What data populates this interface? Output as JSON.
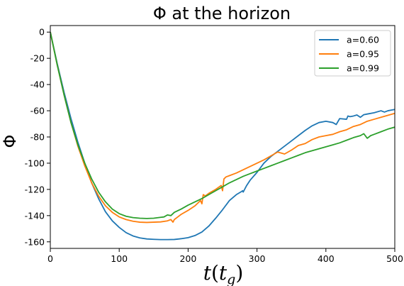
{
  "chart_data": {
    "type": "line",
    "title": "Φ at the horizon",
    "xlabel_main": "t",
    "xlabel_paren_open": "(",
    "xlabel_sub_base": "t",
    "xlabel_sub": "g",
    "xlabel_paren_close": ")",
    "ylabel": "Φ",
    "xlim": [
      0,
      500
    ],
    "ylim": [
      -165,
      5
    ],
    "xticks": [
      0,
      100,
      200,
      300,
      400,
      500
    ],
    "yticks": [
      0,
      -20,
      -40,
      -60,
      -80,
      -100,
      -120,
      -140,
      -160
    ],
    "grid": false,
    "legend_position": "top-right",
    "colors": {
      "a060": "#1f77b4",
      "a095": "#ff7f0e",
      "a099": "#2ca02c"
    },
    "series": [
      {
        "name": "a=0.60",
        "color": "#1f77b4",
        "x": [
          0,
          10,
          20,
          30,
          40,
          50,
          60,
          70,
          80,
          90,
          100,
          110,
          120,
          130,
          140,
          150,
          160,
          170,
          180,
          190,
          200,
          210,
          220,
          230,
          240,
          250,
          260,
          270,
          278,
          279,
          280,
          282,
          285,
          290,
          300,
          310,
          320,
          325,
          330,
          340,
          350,
          360,
          370,
          380,
          390,
          400,
          410,
          415,
          420,
          430,
          432,
          435,
          440,
          445,
          450,
          455,
          460,
          470,
          480,
          485,
          490,
          495,
          500
        ],
        "y": [
          0,
          -24,
          -46,
          -66,
          -84,
          -100,
          -115,
          -127,
          -137,
          -144,
          -149,
          -153,
          -155.5,
          -157,
          -157.8,
          -158.1,
          -158.3,
          -158.3,
          -158.2,
          -157.6,
          -156.8,
          -155.2,
          -152.5,
          -148,
          -142,
          -135.5,
          -128.5,
          -124,
          -121.5,
          -121,
          -122,
          -120,
          -117,
          -113,
          -107,
          -100,
          -95,
          -93,
          -91,
          -87,
          -83,
          -79,
          -75,
          -71.5,
          -69,
          -68,
          -69,
          -70.5,
          -66,
          -66.5,
          -64,
          -64.5,
          -64,
          -63.2,
          -65,
          -63,
          -62.5,
          -61.5,
          -60,
          -61,
          -60,
          -59.5,
          -59
        ]
      },
      {
        "name": "a=0.95",
        "color": "#ff7f0e",
        "x": [
          0,
          10,
          20,
          30,
          40,
          50,
          60,
          70,
          80,
          90,
          100,
          110,
          120,
          130,
          140,
          150,
          160,
          170,
          175,
          178,
          180,
          185,
          190,
          200,
          210,
          215,
          218,
          220,
          222,
          225,
          230,
          240,
          248,
          250,
          252,
          255,
          260,
          270,
          280,
          290,
          300,
          310,
          320,
          330,
          340,
          350,
          360,
          370,
          380,
          390,
          400,
          410,
          420,
          430,
          440,
          450,
          460,
          470,
          480,
          490,
          500
        ],
        "y": [
          0,
          -25,
          -48,
          -69,
          -87,
          -102,
          -115,
          -125,
          -132.5,
          -137.5,
          -141,
          -143,
          -144.3,
          -145,
          -145.2,
          -145,
          -144.8,
          -144,
          -143,
          -145,
          -143,
          -141,
          -139,
          -136,
          -132.5,
          -130,
          -128.5,
          -131,
          -124,
          -125,
          -123,
          -120,
          -117,
          -121,
          -112,
          -110.5,
          -109.5,
          -107.5,
          -105,
          -102.5,
          -100,
          -97.5,
          -94.5,
          -91.5,
          -93,
          -90,
          -86.5,
          -85,
          -82,
          -80,
          -79,
          -78,
          -76,
          -74.5,
          -72,
          -70.5,
          -68,
          -66.5,
          -65,
          -63.5,
          -62
        ]
      },
      {
        "name": "a=0.99",
        "color": "#2ca02c",
        "x": [
          0,
          10,
          20,
          30,
          40,
          50,
          60,
          70,
          80,
          90,
          100,
          110,
          120,
          130,
          140,
          150,
          160,
          165,
          170,
          175,
          180,
          190,
          200,
          210,
          220,
          230,
          240,
          250,
          260,
          270,
          280,
          290,
          300,
          310,
          320,
          330,
          340,
          350,
          360,
          370,
          380,
          390,
          400,
          410,
          420,
          430,
          440,
          450,
          455,
          460,
          465,
          470,
          480,
          490,
          500
        ],
        "y": [
          0,
          -25,
          -48,
          -69,
          -86,
          -100,
          -112,
          -122,
          -129.5,
          -135,
          -138.5,
          -140.5,
          -141.5,
          -142,
          -142.2,
          -142,
          -141.3,
          -141,
          -139.5,
          -140,
          -137.5,
          -135,
          -132,
          -129.5,
          -127,
          -124,
          -121,
          -118,
          -115,
          -112.5,
          -110,
          -108,
          -106,
          -104,
          -102,
          -100,
          -98,
          -96,
          -94,
          -92,
          -90.5,
          -89,
          -87.5,
          -86,
          -84.5,
          -82.5,
          -80.5,
          -79,
          -77.5,
          -81,
          -79,
          -78,
          -76,
          -74,
          -72.5
        ]
      }
    ]
  }
}
